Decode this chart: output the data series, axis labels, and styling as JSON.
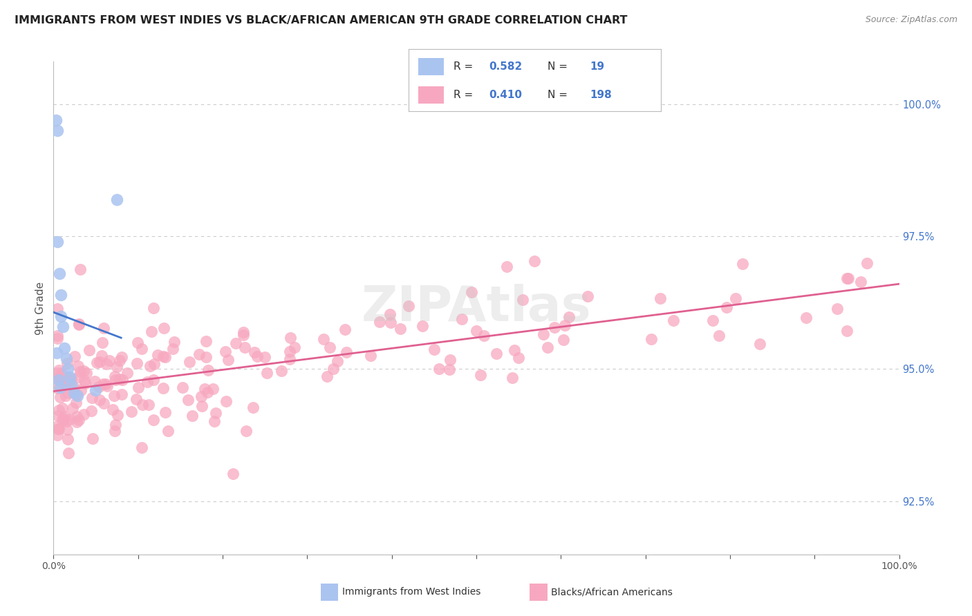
{
  "title": "IMMIGRANTS FROM WEST INDIES VS BLACK/AFRICAN AMERICAN 9TH GRADE CORRELATION CHART",
  "source": "Source: ZipAtlas.com",
  "ylabel": "9th Grade",
  "ylabel_right_ticks": [
    92.5,
    95.0,
    97.5,
    100.0
  ],
  "ylabel_right_labels": [
    "92.5%",
    "95.0%",
    "97.5%",
    "100.0%"
  ],
  "legend_label1": "Immigrants from West Indies",
  "legend_label2": "Blacks/African Americans",
  "R1": 0.582,
  "N1": 19,
  "R2": 0.41,
  "N2": 198,
  "color_blue": "#aac4f0",
  "color_pink": "#f7a8c0",
  "color_line_blue": "#4477cc",
  "color_line_pink": "#e06090",
  "xmin": 0.0,
  "xmax": 100.0,
  "ymin": 91.5,
  "ymax": 100.8,
  "background_color": "#ffffff",
  "grid_color": "#cccccc",
  "watermark": "ZIPAtlas"
}
